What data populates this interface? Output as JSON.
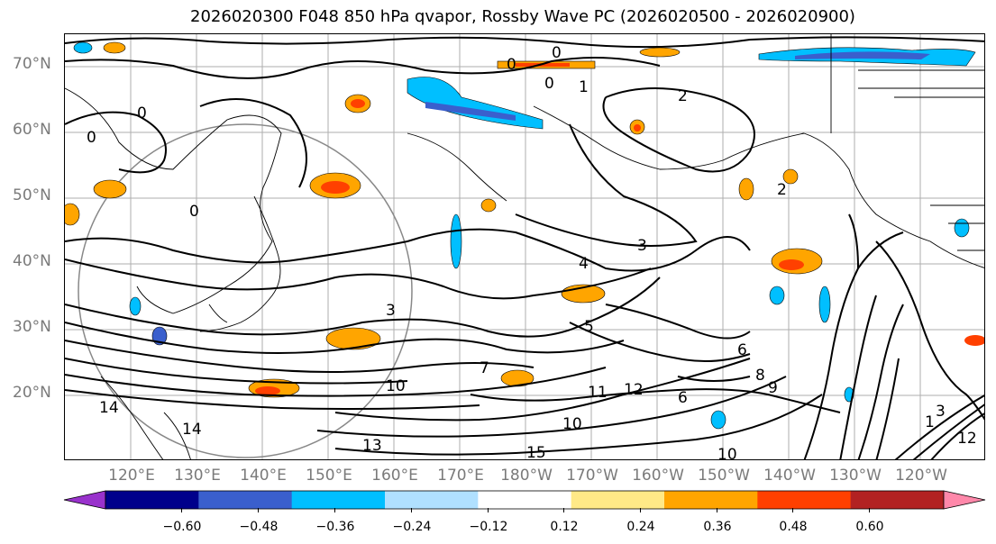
{
  "title": "2026020300 F048 850 hPa qvapor, Rossby Wave PC (2026020500 - 2026020900)",
  "map": {
    "lat_labels": [
      "70°N",
      "60°N",
      "50°N",
      "40°N",
      "30°N",
      "20°N"
    ],
    "lon_labels": [
      "120°E",
      "130°E",
      "140°E",
      "150°E",
      "160°E",
      "170°E",
      "180°W",
      "170°W",
      "160°W",
      "150°W",
      "140°W",
      "130°W",
      "120°W"
    ],
    "contour_labels": [
      "0",
      "0",
      "0",
      "1",
      "2",
      "0",
      "0",
      "0",
      "2",
      "3",
      "3",
      "4",
      "5",
      "6",
      "7",
      "6",
      "8",
      "9",
      "10",
      "10",
      "10",
      "11",
      "12",
      "13",
      "14",
      "15",
      "3",
      "1",
      "12",
      "14"
    ],
    "colors": {
      "land_outline": "#000000",
      "grid": "#9a9a9a",
      "circle": "#888888"
    }
  },
  "colorbar": {
    "ticks": [
      "−0.60",
      "−0.48",
      "−0.36",
      "−0.24",
      "−0.12",
      "0.12",
      "0.24",
      "0.36",
      "0.48",
      "0.60"
    ],
    "colors": [
      "#9932cc",
      "#00008b",
      "#3a5fcd",
      "#00bfff",
      "#b0e0ff",
      "#ffffff",
      "#ffe987",
      "#ffa500",
      "#ff4000",
      "#b22222",
      "#ff88aa"
    ]
  }
}
